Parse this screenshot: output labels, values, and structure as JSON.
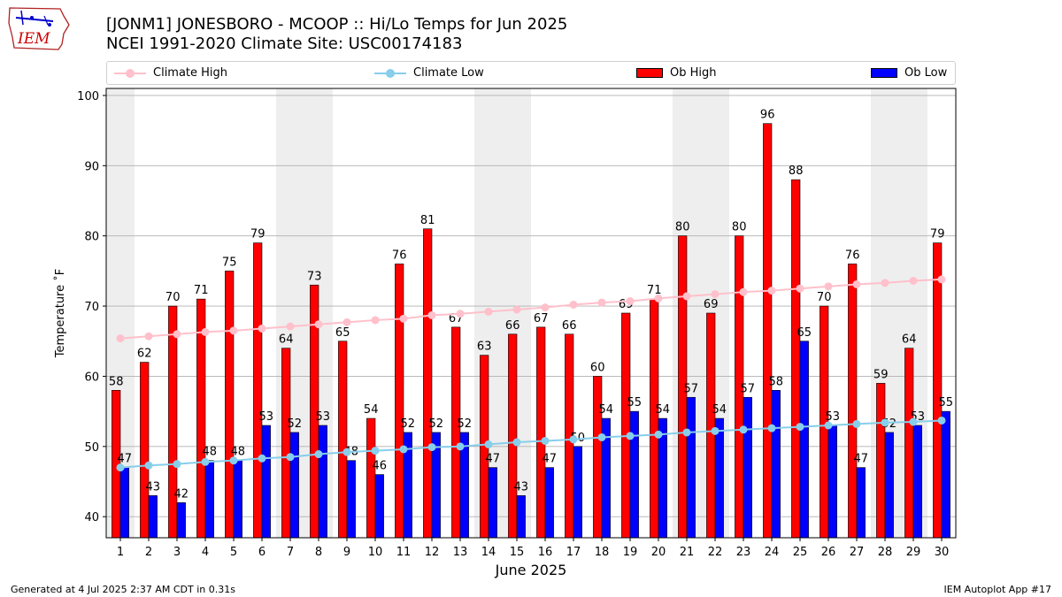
{
  "header": {
    "title_line1": "[JONM1] JONESBORO - MCOOP :: Hi/Lo Temps for Jun 2025",
    "title_line2": "NCEI 1991-2020 Climate Site: USC00174183"
  },
  "logo": {
    "text": "IEM",
    "icon": "iem-iowa-logo"
  },
  "legend": {
    "items": [
      {
        "label": "Climate High",
        "kind": "line",
        "color": "#ffc0cb"
      },
      {
        "label": "Climate Low",
        "kind": "line",
        "color": "#87ceeb"
      },
      {
        "label": "Ob High",
        "kind": "bar",
        "color": "#ff0000"
      },
      {
        "label": "Ob Low",
        "kind": "bar",
        "color": "#0000ff"
      }
    ]
  },
  "footer": {
    "left": "Generated at 4 Jul 2025 2:37 AM CDT in 0.31s",
    "right": "IEM Autoplot App #17"
  },
  "chart_data": {
    "type": "bar",
    "xlabel": "June 2025",
    "ylabel": "Temperature ˚F",
    "ylim": [
      37,
      101
    ],
    "yticks": [
      40,
      50,
      60,
      70,
      80,
      90,
      100
    ],
    "grid": true,
    "legend_position": "top",
    "weekend_shading_days": [
      1,
      7,
      8,
      14,
      15,
      21,
      22,
      28,
      29
    ],
    "categories": [
      "1",
      "2",
      "3",
      "4",
      "5",
      "6",
      "7",
      "8",
      "9",
      "10",
      "11",
      "12",
      "13",
      "14",
      "15",
      "16",
      "17",
      "18",
      "19",
      "20",
      "21",
      "22",
      "23",
      "24",
      "25",
      "26",
      "27",
      "28",
      "29",
      "30"
    ],
    "series": [
      {
        "name": "Ob High",
        "kind": "bar",
        "color": "#ff0000",
        "values": [
          58,
          62,
          70,
          71,
          75,
          79,
          64,
          73,
          65,
          54,
          76,
          81,
          67,
          63,
          66,
          67,
          66,
          60,
          69,
          71,
          80,
          69,
          80,
          96,
          88,
          70,
          76,
          59,
          64,
          79
        ]
      },
      {
        "name": "Ob Low",
        "kind": "bar",
        "color": "#0000ff",
        "values": [
          47,
          43,
          42,
          48,
          48,
          53,
          52,
          53,
          48,
          46,
          52,
          52,
          52,
          47,
          43,
          47,
          50,
          54,
          55,
          54,
          57,
          54,
          57,
          58,
          65,
          53,
          47,
          52,
          53,
          55
        ]
      },
      {
        "name": "Climate High",
        "kind": "line",
        "color": "#ffc0cb",
        "values": [
          65.4,
          65.7,
          66.0,
          66.3,
          66.5,
          66.8,
          67.1,
          67.4,
          67.7,
          68.0,
          68.2,
          68.7,
          68.9,
          69.2,
          69.5,
          69.8,
          70.2,
          70.5,
          70.7,
          71.1,
          71.4,
          71.7,
          72.0,
          72.2,
          72.5,
          72.8,
          73.1,
          73.3,
          73.6,
          73.8
        ]
      },
      {
        "name": "Climate Low",
        "kind": "line",
        "color": "#87ceeb",
        "values": [
          47.0,
          47.3,
          47.5,
          47.8,
          48.0,
          48.3,
          48.5,
          48.9,
          49.2,
          49.4,
          49.6,
          49.9,
          50.0,
          50.3,
          50.6,
          50.8,
          51.0,
          51.3,
          51.5,
          51.7,
          52.0,
          52.2,
          52.4,
          52.6,
          52.8,
          53.0,
          53.2,
          53.4,
          53.5,
          53.7
        ]
      }
    ]
  }
}
